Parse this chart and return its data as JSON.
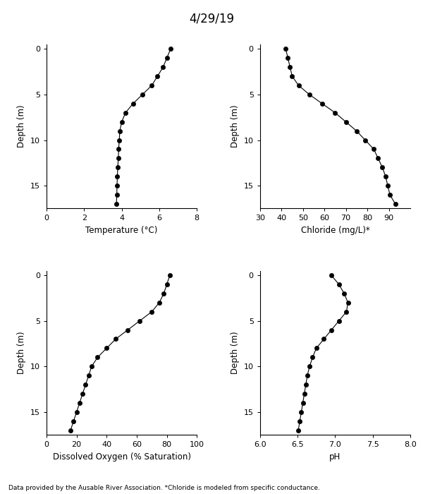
{
  "title": "4/29/19",
  "footnote": "Data provided by the Ausable River Association. *Chloride is modeled from specific conductance.",
  "temp_depth": [
    0,
    1,
    2,
    3,
    4,
    5,
    6,
    7,
    8,
    9,
    10,
    11,
    12,
    13,
    14,
    15,
    16,
    17
  ],
  "temp_val": [
    6.6,
    6.4,
    6.2,
    5.9,
    5.6,
    5.1,
    4.6,
    4.2,
    4.0,
    3.9,
    3.87,
    3.84,
    3.82,
    3.79,
    3.77,
    3.75,
    3.74,
    3.72
  ],
  "chloride_depth": [
    0,
    1,
    2,
    3,
    4,
    5,
    6,
    7,
    8,
    9,
    10,
    11,
    12,
    13,
    14,
    15,
    16,
    17
  ],
  "chloride_val": [
    42,
    43,
    44,
    45,
    48,
    53,
    59,
    65,
    70,
    75,
    79,
    83,
    85,
    87,
    88.5,
    89.5,
    90.5,
    93
  ],
  "do_depth": [
    0,
    1,
    2,
    3,
    4,
    5,
    6,
    7,
    8,
    9,
    10,
    11,
    12,
    13,
    14,
    15,
    16,
    17
  ],
  "do_val": [
    82,
    80,
    78,
    75,
    70,
    62,
    54,
    46,
    40,
    34,
    30,
    28,
    26,
    24,
    22,
    20,
    18,
    16
  ],
  "ph_depth": [
    0,
    1,
    2,
    3,
    4,
    5,
    6,
    7,
    8,
    9,
    10,
    11,
    12,
    13,
    14,
    15,
    16,
    17
  ],
  "ph_val": [
    6.95,
    7.05,
    7.12,
    7.17,
    7.15,
    7.05,
    6.95,
    6.85,
    6.75,
    6.7,
    6.66,
    6.63,
    6.61,
    6.59,
    6.57,
    6.55,
    6.53,
    6.51
  ],
  "temp_xlim": [
    0,
    8
  ],
  "temp_xticks": [
    0,
    2,
    4,
    6,
    8
  ],
  "temp_xlabel": "Temperature (°C)",
  "chloride_xlim": [
    30,
    100
  ],
  "chloride_xticks": [
    30,
    40,
    50,
    60,
    70,
    80,
    90
  ],
  "chloride_xlabel": "Chloride (mg/L)*",
  "do_xlim": [
    0,
    100
  ],
  "do_xticks": [
    0,
    20,
    40,
    60,
    80,
    100
  ],
  "do_xlabel": "Dissolved Oxygen (% Saturation)",
  "ph_xlim": [
    6.0,
    8.0
  ],
  "ph_xticks": [
    6.0,
    6.5,
    7.0,
    7.5,
    8.0
  ],
  "ph_xlabel": "pH",
  "ylim": [
    17.5,
    -0.5
  ],
  "yticks": [
    0,
    5,
    10,
    15
  ],
  "ylabel": "Depth (m)",
  "line_color": "black",
  "marker": "o",
  "marker_size": 4.5,
  "marker_color": "black",
  "line_width": 0.8,
  "background_color": "white",
  "fig_width": 6.0,
  "fig_height": 7.0,
  "title_fontsize": 12,
  "label_fontsize": 8.5,
  "tick_fontsize": 8,
  "footnote_fontsize": 6.5
}
